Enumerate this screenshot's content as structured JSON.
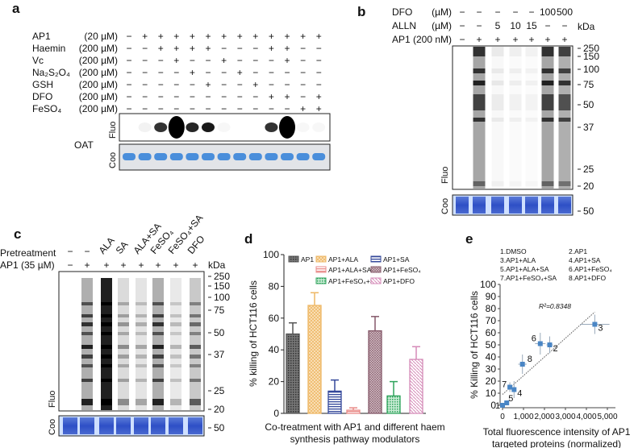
{
  "panel_a": {
    "label": "a",
    "rows": [
      {
        "name": "AP1",
        "conc": "(20 µM)",
        "signs": [
          "−",
          "+",
          "+",
          "+",
          "+",
          "+",
          "+",
          "+",
          "+",
          "+",
          "+",
          "+",
          "+"
        ]
      },
      {
        "name": "Haemin",
        "conc": "(200 µM)",
        "signs": [
          "−",
          "−",
          "+",
          "+",
          "+",
          "+",
          "−",
          "−",
          "−",
          "+",
          "+",
          "−",
          "−"
        ]
      },
      {
        "name": "Vc",
        "conc": "(200 µM)",
        "signs": [
          "−",
          "−",
          "−",
          "+",
          "−",
          "−",
          "+",
          "−",
          "−",
          "−",
          "+",
          "−",
          "−"
        ]
      },
      {
        "name": "Na₂S₂O₄",
        "conc": "(200 µM)",
        "signs": [
          "−",
          "−",
          "−",
          "−",
          "+",
          "−",
          "−",
          "+",
          "−",
          "−",
          "−",
          "−",
          "−"
        ]
      },
      {
        "name": "GSH",
        "conc": "(200 µM)",
        "signs": [
          "−",
          "−",
          "−",
          "−",
          "−",
          "+",
          "−",
          "−",
          "+",
          "−",
          "−",
          "−",
          "−"
        ]
      },
      {
        "name": "DFO",
        "conc": "(200 µM)",
        "signs": [
          "−",
          "−",
          "−",
          "−",
          "−",
          "−",
          "−",
          "−",
          "−",
          "+",
          "+",
          "−",
          "+"
        ]
      },
      {
        "name": "FeSO₄",
        "conc": "(200 µM)",
        "signs": [
          "−",
          "−",
          "−",
          "−",
          "−",
          "−",
          "−",
          "−",
          "−",
          "−",
          "−",
          "+",
          "+"
        ]
      }
    ],
    "fluo_label": "Fluo",
    "coo_label": "Coo",
    "protein_label": "OAT"
  },
  "panel_b": {
    "label": "b",
    "rows": [
      {
        "name": "DFO",
        "conc": "(µM)",
        "values": [
          "−",
          "−",
          "−",
          "−",
          "−",
          "100",
          "500"
        ]
      },
      {
        "name": "ALLN",
        "conc": "(µM)",
        "values": [
          "−",
          "−",
          "5",
          "10",
          "15",
          "−",
          "−"
        ]
      },
      {
        "name": "AP1",
        "conc": "(200 nM)",
        "values": [
          "−",
          "+",
          "+",
          "+",
          "+",
          "+",
          "+"
        ]
      }
    ],
    "kda_label": "kDa",
    "markers": [
      "250",
      "150",
      "100",
      "75",
      "50",
      "37",
      "25",
      "20"
    ],
    "coo_marker": "50",
    "fluo_label": "Fluo",
    "coo_label": "Coo"
  },
  "panel_c": {
    "label": "c",
    "pretreatment_label": "Pretreatment",
    "pretreatment": [
      "−",
      "−",
      "ALA",
      "SA",
      "ALA+SA",
      "FeSO₄",
      "FeSO₄+SA",
      "DFO"
    ],
    "ap1_label": "AP1  (35 µM)",
    "ap1": [
      "−",
      "+",
      "+",
      "+",
      "+",
      "+",
      "+",
      "+"
    ],
    "kda_label": "kDa",
    "markers": [
      "250",
      "150",
      "100",
      "75",
      "50",
      "37",
      "25",
      "20"
    ],
    "coo_marker": "50",
    "fluo_label": "Fluo",
    "coo_label": "Coo"
  },
  "chart_data": [
    {
      "panel": "d",
      "type": "bar",
      "ylabel": "% killing of HCT116 cells",
      "xlabel": [
        "Co-treatment with AP1 and different haem",
        "synthesis pathway modulators"
      ],
      "ylim": [
        0,
        100
      ],
      "yticks": [
        "0",
        "20",
        "40",
        "60",
        "80",
        "100"
      ],
      "legend_placement": "top",
      "series": [
        {
          "name": "AP1",
          "value": 50,
          "error": 7,
          "color": "#555555"
        },
        {
          "name": "AP1+ALA",
          "value": 68,
          "error": 8,
          "color": "#eeb764"
        },
        {
          "name": "AP1+SA",
          "value": 14,
          "error": 7,
          "color": "#34489a"
        },
        {
          "name": "AP1+ALA+SA",
          "value": 2,
          "error": 1.5,
          "color": "#e98a88"
        },
        {
          "name": "AP1+FeSO₄",
          "value": 52,
          "error": 9,
          "color": "#85596a"
        },
        {
          "name": "AP1+FeSO₄+SA",
          "value": 11,
          "error": 9,
          "color": "#2fa35c"
        },
        {
          "name": "AP1+DFO",
          "value": 34,
          "error": 8,
          "color": "#d58bb8"
        }
      ]
    },
    {
      "panel": "e",
      "type": "scatter",
      "ylabel": "% Killing of HCT116 cells",
      "xlabel": [
        "Total fluorescence intensity of AP1",
        "targeted proteins (normalized)"
      ],
      "xlim": [
        0,
        5000
      ],
      "ylim": [
        0,
        100
      ],
      "xticks": [
        "0",
        "1,000",
        "2,000",
        "3,000",
        "4,000",
        "5,000"
      ],
      "yticks": [
        "0",
        "10",
        "20",
        "30",
        "40",
        "50",
        "60",
        "70",
        "80",
        "90",
        "100"
      ],
      "annotation": "R²=0.8348",
      "legend": [
        "1.DMSO",
        "2.AP1",
        "3.AP1+ALA",
        "4.AP1+SA",
        "5.AP1+ALA+SA",
        "6.AP1+FeSO₄",
        "7.AP1+FeSO₄+SA",
        "8.AP1+DFO"
      ],
      "point_color": "#4a86c5",
      "points": [
        {
          "label": "1",
          "x": 0,
          "y": 0,
          "xerr": 0,
          "yerr": 0
        },
        {
          "label": "2",
          "x": 2250,
          "y": 50,
          "xerr": 150,
          "yerr": 7
        },
        {
          "label": "3",
          "x": 4400,
          "y": 67,
          "xerr": 700,
          "yerr": 8
        },
        {
          "label": "4",
          "x": 550,
          "y": 13,
          "xerr": 100,
          "yerr": 7
        },
        {
          "label": "5",
          "x": 200,
          "y": 2,
          "xerr": 50,
          "yerr": 1.5
        },
        {
          "label": "6",
          "x": 1800,
          "y": 51,
          "xerr": 250,
          "yerr": 9
        },
        {
          "label": "7",
          "x": 350,
          "y": 15,
          "xerr": 80,
          "yerr": 4
        },
        {
          "label": "8",
          "x": 950,
          "y": 34,
          "xerr": 200,
          "yerr": 8
        }
      ],
      "trendline": {
        "intercept": 9,
        "slope": 0.0155,
        "x_range": [
          0,
          4400
        ]
      }
    }
  ]
}
